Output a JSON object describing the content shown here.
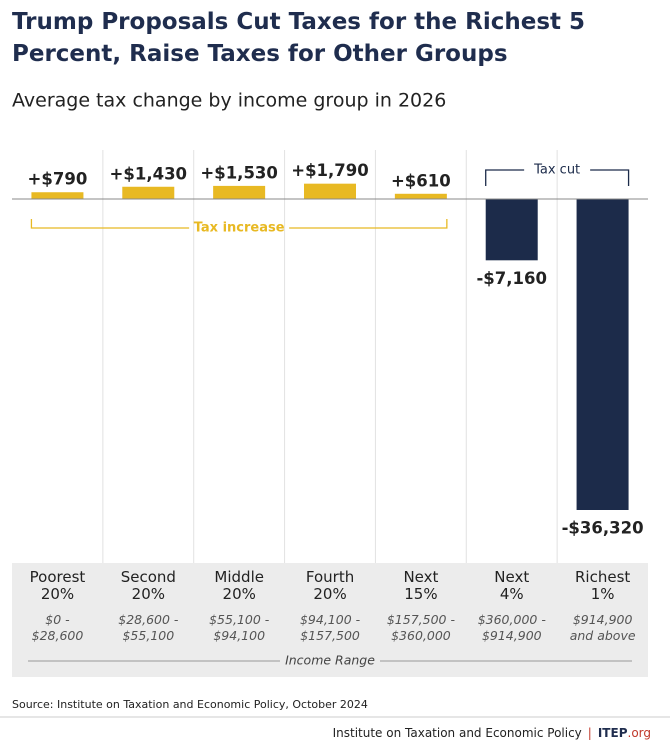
{
  "chart_data": {
    "type": "bar",
    "title": "Trump Proposals Cut Taxes for the Richest 5 Percent, Raise Taxes for Other Groups",
    "subtitle": "Average tax change by income group in 2026",
    "categories": [
      "Poorest\n20%",
      "Second\n20%",
      "Middle\n20%",
      "Fourth\n20%",
      "Next\n15%",
      "Next\n4%",
      "Richest\n1%"
    ],
    "income_ranges": [
      "$0 -\n$28,600",
      "$28,600 -\n$55,100",
      "$55,100 -\n$94,100",
      "$94,100 -\n$157,500",
      "$157,500 -\n$360,000",
      "$360,000 -\n$914,900",
      "$914,900\nand above"
    ],
    "x_label": "Income Range",
    "values": [
      790,
      1430,
      1530,
      1790,
      610,
      -7160,
      -36320
    ],
    "value_labels": [
      "+$790",
      "+$1,430",
      "+$1,530",
      "+$1,790",
      "+$610",
      "-$7,160",
      "-$36,320"
    ],
    "positive_color": "#e8b923",
    "negative_color": "#1c2b4a",
    "annotations": {
      "increase": "Tax increase",
      "cut": "Tax cut"
    },
    "ylim": [
      -38000,
      2000
    ],
    "source": "Source: Institute on Taxation and Economic Policy, October 2024",
    "footer": {
      "org": "Institute on Taxation and Economic Policy",
      "logo": "ITEP",
      "logo_suffix": ".org"
    }
  }
}
